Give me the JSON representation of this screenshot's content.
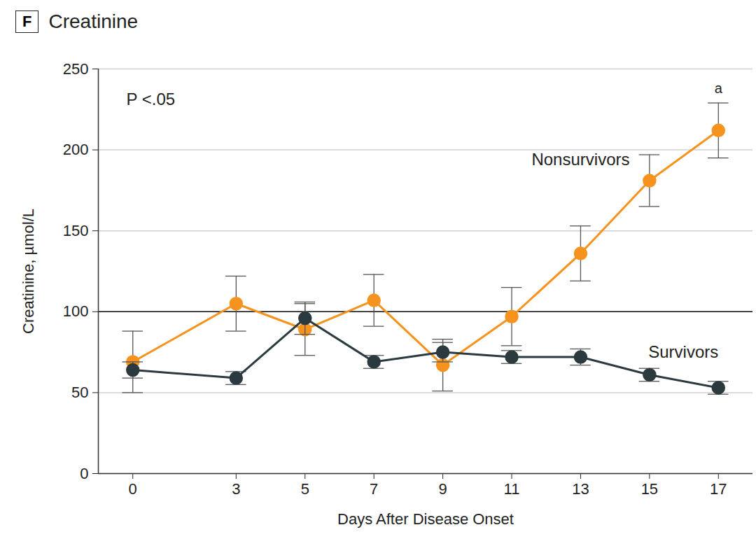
{
  "chart_data": {
    "type": "line",
    "panel_label": "F",
    "title": "Creatinine",
    "x_label": "Days After Disease Onset",
    "y_label": "Creatinine, µmol/L",
    "x": [
      0,
      3,
      5,
      7,
      9,
      11,
      13,
      15,
      17
    ],
    "series": [
      {
        "name": "Nonsurvivors",
        "color": "#f5931e",
        "marker": "circle",
        "line_style": "solid",
        "values": [
          69,
          105,
          89,
          107,
          67,
          97,
          136,
          181,
          212
        ],
        "errors": [
          19,
          17,
          16,
          16,
          16,
          18,
          17,
          16,
          17
        ]
      },
      {
        "name": "Survivors",
        "color": "#2b3a3f",
        "marker": "circle",
        "line_style": "solid",
        "values": [
          64,
          59,
          96,
          69,
          75,
          72,
          72,
          61,
          53
        ],
        "errors": [
          5,
          4,
          10,
          4,
          6,
          4,
          5,
          4,
          4
        ]
      }
    ],
    "xlim": [
      -1,
      18
    ],
    "xticks": [
      0,
      3,
      5,
      7,
      9,
      11,
      13,
      15,
      17
    ],
    "ylim": [
      0,
      250
    ],
    "yticks": [
      0,
      50,
      100,
      150,
      200,
      250
    ],
    "grid": true,
    "reference_line": 100,
    "annotations": [
      "P <.05"
    ],
    "significance_marks": [
      {
        "text": "a",
        "series": "Nonsurvivors",
        "x": 17
      }
    ]
  }
}
